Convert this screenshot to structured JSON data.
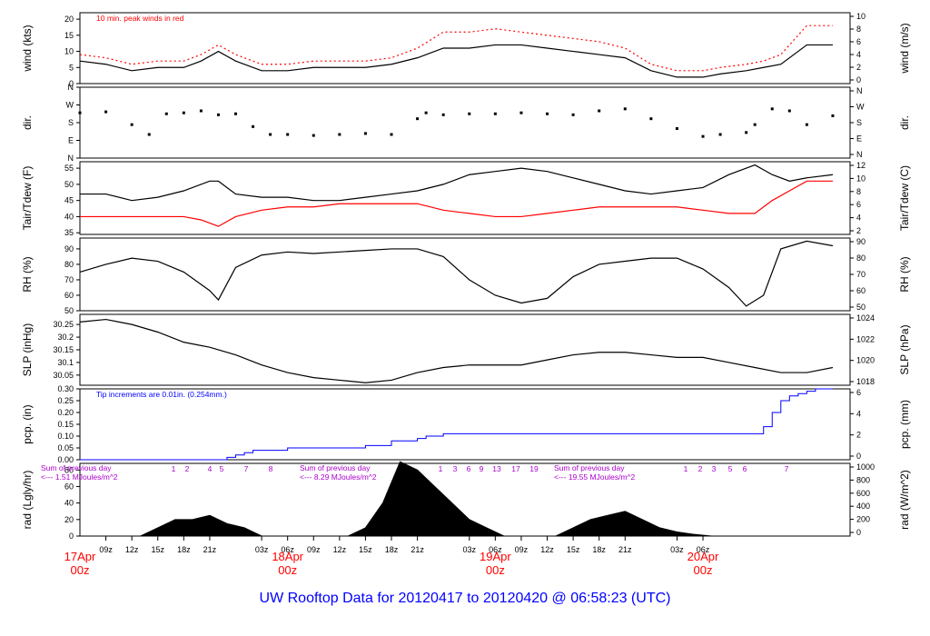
{
  "caption": "UW Rooftop Data for 20120417  to  20120420 @ 06:58:23  (UTC)",
  "colors": {
    "data": "#000000",
    "peak": "#ff0000",
    "dew": "#ff0000",
    "pcp": "#0000ff",
    "annot": "#aa00cc",
    "date": "#ff0000",
    "caption": "#0000ff"
  },
  "chart_data": [
    {
      "id": "wind",
      "type": "line",
      "ylabel": "wind (kts)",
      "ylabel_right": "wind (m/s)",
      "ylim": [
        0,
        22
      ],
      "yticks": [
        0,
        5,
        10,
        15,
        20
      ],
      "right_ticks": [
        "0",
        "2",
        "4",
        "6",
        "8",
        "10"
      ],
      "annotation": "10 min. peak winds in red",
      "series": [
        {
          "style": "line",
          "color": "#000000",
          "x": [
            6,
            9,
            12,
            15,
            18,
            20,
            22,
            24,
            27,
            30,
            33,
            36,
            39,
            42,
            45,
            48,
            51,
            54,
            57,
            60,
            63,
            66,
            69,
            72,
            75,
            78,
            80,
            83,
            85,
            87,
            90,
            93
          ],
          "values": [
            7,
            6,
            4,
            5,
            5,
            7,
            10,
            7,
            4,
            4,
            5,
            5,
            5,
            6,
            8,
            11,
            11,
            12,
            12,
            11,
            10,
            9,
            8,
            4,
            2,
            2,
            3,
            4,
            5,
            6,
            12,
            12
          ]
        },
        {
          "style": "dash",
          "color": "#ff0000",
          "x": [
            6,
            9,
            12,
            15,
            18,
            20,
            22,
            24,
            27,
            30,
            33,
            36,
            39,
            42,
            45,
            48,
            51,
            54,
            57,
            60,
            63,
            66,
            69,
            72,
            75,
            78,
            80,
            83,
            85,
            87,
            90,
            93
          ],
          "values": [
            9,
            8,
            6,
            7,
            7,
            9,
            12,
            9,
            6,
            6,
            7,
            7,
            7,
            8,
            11,
            16,
            16,
            17,
            16,
            15,
            14,
            13,
            11,
            6,
            4,
            4,
            5,
            6,
            7,
            9,
            18,
            18
          ]
        }
      ]
    },
    {
      "id": "dir",
      "type": "scatter",
      "ylabel": "dir.",
      "ylabel_right": "dir.",
      "ylim": [
        0,
        360
      ],
      "ytick_values": [
        0,
        90,
        180,
        270,
        360
      ],
      "ytick_labels": [
        "N",
        "E",
        "S",
        "W",
        "N"
      ],
      "right_ticks": [
        "N",
        "E",
        "S",
        "W",
        "N"
      ],
      "series": [
        {
          "style": "dots",
          "color": "#000000",
          "x": [
            6,
            9,
            12,
            14,
            16,
            18,
            20,
            22,
            24,
            26,
            28,
            30,
            33,
            36,
            39,
            42,
            45,
            46,
            48,
            51,
            54,
            57,
            60,
            63,
            66,
            69,
            72,
            75,
            78,
            80,
            83,
            84,
            86,
            88,
            90,
            93
          ],
          "values": [
            230,
            235,
            170,
            120,
            225,
            230,
            240,
            220,
            225,
            160,
            120,
            120,
            115,
            120,
            125,
            120,
            200,
            230,
            220,
            225,
            225,
            230,
            225,
            220,
            240,
            250,
            200,
            150,
            110,
            120,
            130,
            170,
            250,
            240,
            170,
            215
          ]
        }
      ]
    },
    {
      "id": "temp",
      "type": "line",
      "ylabel": "Tair/Tdew (F)",
      "ylabel_right": "Tair/Tdew (C)",
      "ylim": [
        34.5,
        57
      ],
      "yticks": [
        35,
        40,
        45,
        50,
        55
      ],
      "right_ticks": [
        "2",
        "4",
        "6",
        "8",
        "10",
        "12"
      ],
      "series": [
        {
          "name": "Tair",
          "style": "line",
          "color": "#000000",
          "x": [
            6,
            9,
            12,
            15,
            18,
            21,
            22,
            24,
            27,
            30,
            33,
            36,
            39,
            42,
            45,
            48,
            51,
            54,
            57,
            60,
            63,
            66,
            69,
            72,
            75,
            78,
            81,
            84,
            86,
            88,
            90,
            93
          ],
          "values": [
            47,
            47,
            45,
            46,
            48,
            51,
            51,
            47,
            46,
            46,
            45,
            45,
            46,
            47,
            48,
            50,
            53,
            54,
            55,
            54,
            52,
            50,
            48,
            47,
            48,
            49,
            53,
            56,
            53,
            51,
            52,
            53
          ]
        },
        {
          "name": "Tdew",
          "style": "line",
          "color": "#ff0000",
          "x": [
            6,
            9,
            12,
            15,
            18,
            20,
            22,
            24,
            27,
            30,
            33,
            36,
            39,
            42,
            45,
            48,
            51,
            54,
            57,
            60,
            63,
            66,
            69,
            72,
            75,
            78,
            81,
            84,
            86,
            88,
            90,
            93
          ],
          "values": [
            40,
            40,
            40,
            40,
            40,
            39,
            37,
            40,
            42,
            43,
            43,
            44,
            44,
            44,
            44,
            42,
            41,
            40,
            40,
            41,
            42,
            43,
            43,
            43,
            43,
            42,
            41,
            41,
            45,
            48,
            51,
            51
          ]
        }
      ]
    },
    {
      "id": "rh",
      "type": "line",
      "ylabel": "RH (%)",
      "ylabel_right": "RH (%)",
      "ylim": [
        50,
        97
      ],
      "yticks": [
        50,
        60,
        70,
        80,
        90
      ],
      "right_ticks": [
        "50",
        "60",
        "70",
        "80",
        "90"
      ],
      "series": [
        {
          "style": "line",
          "color": "#000000",
          "x": [
            6,
            9,
            12,
            15,
            18,
            21,
            22,
            24,
            27,
            30,
            33,
            36,
            39,
            42,
            45,
            48,
            51,
            54,
            57,
            60,
            63,
            66,
            69,
            72,
            75,
            78,
            81,
            83,
            85,
            87,
            90,
            93
          ],
          "values": [
            75,
            80,
            84,
            82,
            75,
            63,
            57,
            78,
            86,
            88,
            87,
            88,
            89,
            90,
            90,
            85,
            70,
            60,
            55,
            58,
            72,
            80,
            82,
            84,
            84,
            77,
            65,
            53,
            60,
            90,
            95,
            92
          ]
        }
      ]
    },
    {
      "id": "slp",
      "type": "line",
      "ylabel": "SLP (inHg)",
      "ylabel_right": "SLP (hPa)",
      "ylim": [
        30.01,
        30.29
      ],
      "yticks": [
        30.05,
        30.1,
        30.15,
        30.2,
        30.25
      ],
      "right_ticks": [
        "1018",
        "1020",
        "1022",
        "1024"
      ],
      "series": [
        {
          "style": "line",
          "color": "#000000",
          "x": [
            6,
            9,
            12,
            15,
            18,
            21,
            24,
            27,
            30,
            33,
            36,
            39,
            42,
            45,
            48,
            51,
            54,
            57,
            60,
            63,
            66,
            69,
            72,
            75,
            78,
            81,
            84,
            87,
            90,
            93
          ],
          "values": [
            30.26,
            30.27,
            30.25,
            30.22,
            30.18,
            30.16,
            30.13,
            30.09,
            30.06,
            30.04,
            30.03,
            30.02,
            30.03,
            30.06,
            30.08,
            30.09,
            30.09,
            30.09,
            30.11,
            30.13,
            30.14,
            30.14,
            30.13,
            30.12,
            30.12,
            30.1,
            30.08,
            30.06,
            30.06,
            30.08
          ]
        }
      ]
    },
    {
      "id": "pcp",
      "type": "line",
      "ylabel": "pcp. (in)",
      "ylabel_right": "pcp. (mm)",
      "ylim": [
        0,
        0.3
      ],
      "yticks": [
        0,
        0.05,
        0.1,
        0.15,
        0.2,
        0.25,
        0.3
      ],
      "ytick_labels": [
        "0.00",
        "0.05",
        "0.10",
        "0.15",
        "0.20",
        "0.25",
        "0.30"
      ],
      "right_ticks": [
        "0",
        "2",
        "4",
        "6"
      ],
      "annotation": "Tip increments are 0.01in. (0.254mm.)",
      "series": [
        {
          "style": "step",
          "color": "#0000ff",
          "x": [
            6,
            22,
            23,
            24,
            25,
            26,
            30,
            36,
            39,
            42,
            45,
            46,
            48,
            60,
            72,
            84,
            85,
            86,
            87,
            88,
            89,
            90,
            91,
            93
          ],
          "values": [
            0,
            0,
            0.01,
            0.02,
            0.03,
            0.04,
            0.05,
            0.05,
            0.06,
            0.08,
            0.09,
            0.1,
            0.11,
            0.11,
            0.11,
            0.11,
            0.14,
            0.2,
            0.25,
            0.27,
            0.28,
            0.29,
            0.3,
            0.3
          ]
        }
      ]
    },
    {
      "id": "rad",
      "type": "area",
      "ylabel": "rad (Lgly/hr)",
      "ylabel_right": "rad (W/m^2)",
      "ylim": [
        0,
        88
      ],
      "yticks": [
        0,
        20,
        40,
        60,
        80
      ],
      "right_ticks": [
        "0",
        "200",
        "400",
        "600",
        "800",
        "1000"
      ],
      "series": [
        {
          "style": "area",
          "color": "#000000",
          "x": [
            13,
            15,
            17,
            19,
            21,
            23,
            25,
            27,
            37,
            39,
            41,
            43,
            45,
            47,
            49,
            51,
            53,
            55,
            61,
            63,
            65,
            67,
            69,
            71,
            73,
            75,
            77,
            79
          ],
          "values": [
            0,
            10,
            20,
            20,
            25,
            15,
            10,
            0,
            0,
            10,
            40,
            90,
            80,
            60,
            40,
            20,
            10,
            0,
            0,
            10,
            20,
            25,
            30,
            20,
            10,
            5,
            2,
            0
          ]
        }
      ],
      "annotations": [
        "Sum of previous day",
        "<--- 1.51 MJoules/m^2",
        "Sum of previous day",
        "<--- 8.29 MJoules/m^2",
        "Sum of previous day",
        "<--- 19.55 MJoules/m^2"
      ],
      "hour_marks": [
        "1",
        "2",
        "4",
        "5",
        "7",
        "8",
        "1",
        "3",
        "6",
        "9",
        "13",
        "17",
        "19",
        "1",
        "2",
        "3",
        "5",
        "6",
        "7"
      ]
    }
  ],
  "x_axis": {
    "range_hours": [
      6,
      95
    ],
    "hour_labels": [
      "09z",
      "12z",
      "15z",
      "18z",
      "21z",
      "03z",
      "06z",
      "09z",
      "12z",
      "15z",
      "18z",
      "21z",
      "03z",
      "06z",
      "09z",
      "12z",
      "15z",
      "18z",
      "21z",
      "03z",
      "06z"
    ],
    "date_labels": [
      [
        "17Apr",
        "00z"
      ],
      [
        "18Apr",
        "00z"
      ],
      [
        "19Apr",
        "00z"
      ],
      [
        "20Apr",
        "00z"
      ]
    ]
  }
}
